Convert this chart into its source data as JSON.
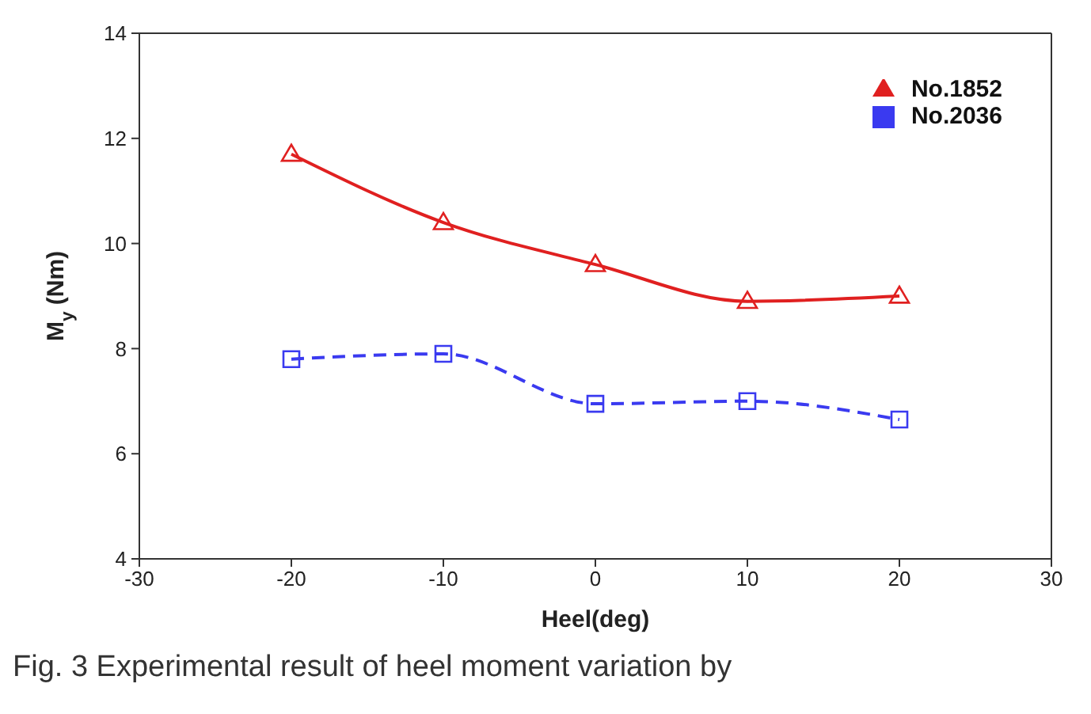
{
  "chart_data": {
    "type": "line",
    "xlabel": "Heel(deg)",
    "ylabel": "M$_{y}$ (Nm)",
    "x": [
      -20,
      -10,
      0,
      10,
      20
    ],
    "series": [
      {
        "name": "No.1852",
        "color": "#e02020",
        "values": [
          11.7,
          10.4,
          9.6,
          8.9,
          9.0
        ],
        "marker": "triangle",
        "line_style": "solid"
      },
      {
        "name": "No.2036",
        "color": "#3a3af0",
        "values": [
          7.8,
          7.9,
          6.95,
          7.0,
          6.65
        ],
        "marker": "square",
        "line_style": "dashed"
      }
    ],
    "xlim": [
      -30,
      30
    ],
    "xticks": [
      -30,
      -20,
      -10,
      0,
      10,
      20,
      30
    ],
    "ylim": [
      4,
      14
    ],
    "yticks": [
      4,
      6,
      8,
      10,
      12,
      14
    ],
    "grid": false,
    "legend": "top right",
    "annotations": [
      "Fig. 3 Experimental result of heel moment variation by"
    ]
  }
}
